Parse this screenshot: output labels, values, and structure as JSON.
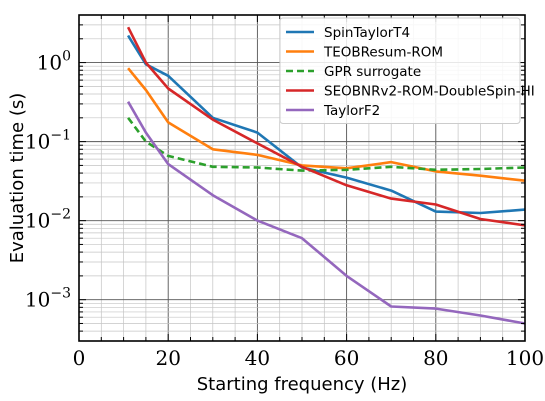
{
  "chart_data": {
    "type": "line",
    "xlabel": "Starting frequency (Hz)",
    "ylabel": "Evaluation time (s)",
    "xlim": [
      0,
      100
    ],
    "ylim": [
      0.0003,
      4.0
    ],
    "yscale": "log",
    "grid": "major and minor",
    "legend_position": "top-right",
    "x_ticks": [
      {
        "value": 0,
        "label": "0"
      },
      {
        "value": 20,
        "label": "20"
      },
      {
        "value": 40,
        "label": "40"
      },
      {
        "value": 60,
        "label": "60"
      },
      {
        "value": 80,
        "label": "80"
      },
      {
        "value": 100,
        "label": "100"
      }
    ],
    "y_ticks": [
      {
        "value": 0.001,
        "base": "10",
        "exp": "−3"
      },
      {
        "value": 0.01,
        "base": "10",
        "exp": "−2"
      },
      {
        "value": 0.1,
        "base": "10",
        "exp": "−1"
      },
      {
        "value": 1,
        "base": "10",
        "exp": "0"
      }
    ],
    "series": [
      {
        "name": "SpinTaylorT4",
        "color": "#1f77b4",
        "dash": "solid",
        "points": [
          [
            11,
            2.2
          ],
          [
            15,
            0.95
          ],
          [
            20,
            0.68
          ],
          [
            30,
            0.2
          ],
          [
            40,
            0.13
          ],
          [
            50,
            0.047
          ],
          [
            60,
            0.035
          ],
          [
            70,
            0.024
          ],
          [
            80,
            0.013
          ],
          [
            90,
            0.0125
          ],
          [
            100,
            0.0138
          ]
        ]
      },
      {
        "name": "TEOBResum-ROM",
        "color": "#ff7f0e",
        "dash": "solid",
        "points": [
          [
            11,
            0.85
          ],
          [
            15,
            0.45
          ],
          [
            20,
            0.175
          ],
          [
            30,
            0.08
          ],
          [
            40,
            0.068
          ],
          [
            50,
            0.05
          ],
          [
            60,
            0.046
          ],
          [
            70,
            0.055
          ],
          [
            80,
            0.042
          ],
          [
            90,
            0.037
          ],
          [
            100,
            0.032
          ]
        ]
      },
      {
        "name": "GPR surrogate",
        "color": "#2ca02c",
        "dash": "dashed",
        "points": [
          [
            11,
            0.2
          ],
          [
            15,
            0.1
          ],
          [
            20,
            0.066
          ],
          [
            30,
            0.048
          ],
          [
            40,
            0.047
          ],
          [
            50,
            0.043
          ],
          [
            60,
            0.044
          ],
          [
            70,
            0.048
          ],
          [
            80,
            0.044
          ],
          [
            90,
            0.045
          ],
          [
            100,
            0.047
          ]
        ]
      },
      {
        "name": "SEOBNRv2-ROM-DoubleSpin-HI",
        "color": "#d62728",
        "dash": "solid",
        "points": [
          [
            11,
            2.8
          ],
          [
            15,
            1.0
          ],
          [
            20,
            0.47
          ],
          [
            30,
            0.19
          ],
          [
            40,
            0.095
          ],
          [
            50,
            0.048
          ],
          [
            60,
            0.028
          ],
          [
            70,
            0.019
          ],
          [
            80,
            0.016
          ],
          [
            90,
            0.0105
          ],
          [
            100,
            0.0087
          ]
        ]
      },
      {
        "name": "TaylorF2",
        "color": "#9467bd",
        "dash": "solid",
        "points": [
          [
            11,
            0.32
          ],
          [
            15,
            0.13
          ],
          [
            20,
            0.052
          ],
          [
            30,
            0.021
          ],
          [
            40,
            0.01
          ],
          [
            50,
            0.006
          ],
          [
            60,
            0.002
          ],
          [
            70,
            0.00082
          ],
          [
            80,
            0.00077
          ],
          [
            90,
            0.00063
          ],
          [
            100,
            0.0005
          ]
        ]
      }
    ]
  }
}
